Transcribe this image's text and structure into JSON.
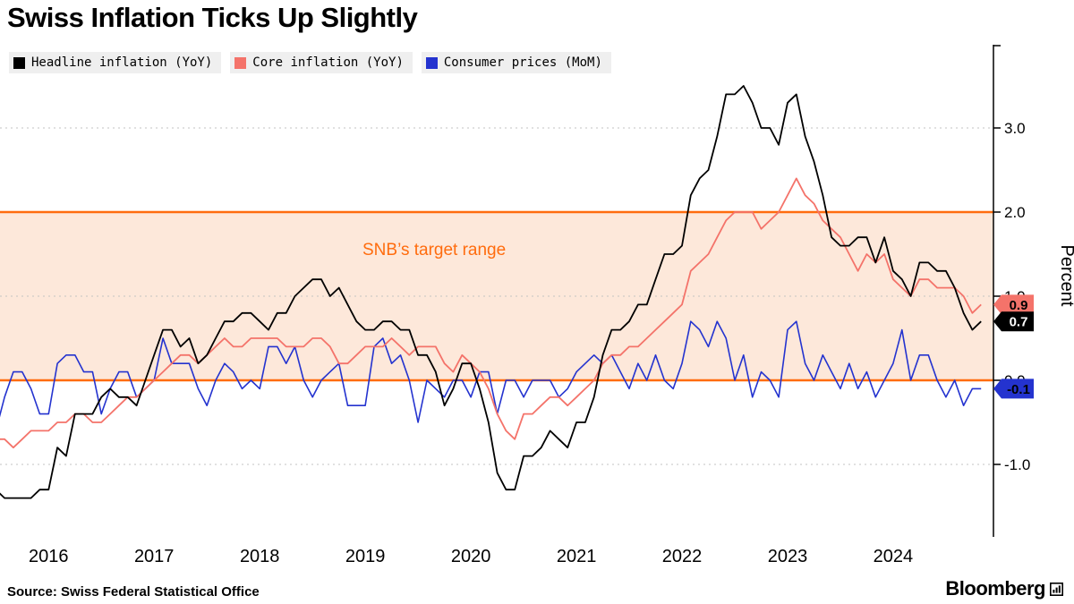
{
  "header": {
    "title": "Swiss Inflation Ticks Up Slightly"
  },
  "legend": [
    {
      "label": "Headline inflation (YoY)",
      "color": "#000000"
    },
    {
      "label": "Core inflation (YoY)",
      "color": "#f4736a"
    },
    {
      "label": "Consumer prices (MoM)",
      "color": "#2433cf"
    }
  ],
  "footer": {
    "source": "Source: Swiss Federal Statistical Office",
    "brand": "Bloomberg"
  },
  "chart_data": {
    "type": "line",
    "title": "Swiss Inflation Ticks Up Slightly",
    "xlabel": "",
    "ylabel": "Percent",
    "ylim": [
      -1.75,
      3.75
    ],
    "grid": "horizontal-dotted",
    "legend_position": "top-left",
    "yticks": [
      {
        "value": 3.0,
        "label": "3.0"
      },
      {
        "value": 2.0,
        "label": "2.0"
      },
      {
        "value": 1.0,
        "label": "1.0"
      },
      {
        "value": 0.0,
        "label": "0.0"
      },
      {
        "value": -1.0,
        "label": "-1.0"
      }
    ],
    "xticks": [
      2016,
      2017,
      2018,
      2019,
      2020,
      2021,
      2022,
      2023,
      2024
    ],
    "start": {
      "year": 2015,
      "month": 7
    },
    "frequency": "monthly",
    "target_band": {
      "label": "SNB’s target range",
      "from": 0.0,
      "to": 2.0,
      "color": "#ff6c0e",
      "fill": "#fde8da"
    },
    "series": [
      {
        "name": "Headline inflation (YoY)",
        "slug": "headline",
        "color": "#000000",
        "width": 1.8,
        "last_label": "0.7",
        "badge_text_color": "#ffffff",
        "values": [
          -1.3,
          -1.4,
          -1.4,
          -1.4,
          -1.4,
          -1.3,
          -1.3,
          -0.8,
          -0.9,
          -0.4,
          -0.4,
          -0.4,
          -0.2,
          -0.1,
          -0.2,
          -0.2,
          -0.3,
          0.0,
          0.3,
          0.6,
          0.6,
          0.4,
          0.5,
          0.2,
          0.3,
          0.5,
          0.7,
          0.7,
          0.8,
          0.8,
          0.7,
          0.6,
          0.8,
          0.8,
          1.0,
          1.1,
          1.2,
          1.2,
          1.0,
          1.1,
          0.9,
          0.7,
          0.6,
          0.6,
          0.7,
          0.7,
          0.6,
          0.6,
          0.3,
          0.3,
          0.1,
          -0.3,
          -0.1,
          0.2,
          0.2,
          -0.1,
          -0.5,
          -1.1,
          -1.3,
          -1.3,
          -0.9,
          -0.9,
          -0.8,
          -0.6,
          -0.7,
          -0.8,
          -0.5,
          -0.5,
          -0.2,
          0.3,
          0.6,
          0.6,
          0.7,
          0.9,
          0.9,
          1.2,
          1.5,
          1.5,
          1.6,
          2.2,
          2.4,
          2.5,
          2.9,
          3.4,
          3.4,
          3.5,
          3.3,
          3.0,
          3.0,
          2.8,
          3.3,
          3.4,
          2.9,
          2.6,
          2.2,
          1.7,
          1.6,
          1.6,
          1.7,
          1.7,
          1.4,
          1.7,
          1.3,
          1.2,
          1.0,
          1.4,
          1.4,
          1.3,
          1.3,
          1.1,
          0.8,
          0.6,
          0.7
        ]
      },
      {
        "name": "Core inflation (YoY)",
        "slug": "core",
        "color": "#f4736a",
        "width": 1.8,
        "last_label": "0.9",
        "badge_text_color": "#000000",
        "values": [
          -0.7,
          -0.7,
          -0.8,
          -0.7,
          -0.6,
          -0.6,
          -0.6,
          -0.5,
          -0.5,
          -0.4,
          -0.4,
          -0.5,
          -0.5,
          -0.4,
          -0.3,
          -0.2,
          -0.2,
          -0.1,
          0.0,
          0.1,
          0.2,
          0.3,
          0.3,
          0.2,
          0.3,
          0.4,
          0.5,
          0.4,
          0.4,
          0.5,
          0.5,
          0.5,
          0.5,
          0.4,
          0.4,
          0.4,
          0.5,
          0.5,
          0.4,
          0.2,
          0.2,
          0.3,
          0.4,
          0.4,
          0.4,
          0.5,
          0.4,
          0.3,
          0.4,
          0.4,
          0.4,
          0.2,
          0.1,
          0.3,
          0.2,
          0.1,
          -0.1,
          -0.4,
          -0.6,
          -0.7,
          -0.4,
          -0.4,
          -0.3,
          -0.2,
          -0.2,
          -0.3,
          -0.2,
          -0.1,
          0.0,
          0.2,
          0.3,
          0.3,
          0.4,
          0.4,
          0.5,
          0.6,
          0.7,
          0.8,
          0.9,
          1.3,
          1.4,
          1.5,
          1.7,
          1.9,
          2.0,
          2.0,
          2.0,
          1.8,
          1.9,
          2.0,
          2.2,
          2.4,
          2.2,
          2.1,
          1.9,
          1.8,
          1.7,
          1.5,
          1.3,
          1.5,
          1.4,
          1.5,
          1.2,
          1.1,
          1.0,
          1.2,
          1.2,
          1.1,
          1.1,
          1.1,
          1.0,
          0.8,
          0.9
        ]
      },
      {
        "name": "Consumer prices (MoM)",
        "slug": "mom",
        "color": "#2433cf",
        "width": 1.6,
        "last_label": "-0.1",
        "badge_text_color": "#000000",
        "values": [
          -0.6,
          -0.2,
          0.1,
          0.1,
          -0.1,
          -0.4,
          -0.4,
          0.2,
          0.3,
          0.3,
          0.1,
          0.1,
          -0.4,
          -0.1,
          0.1,
          0.1,
          -0.2,
          -0.1,
          0.0,
          0.5,
          0.2,
          0.2,
          0.2,
          -0.1,
          -0.3,
          0.0,
          0.2,
          0.1,
          -0.1,
          0.0,
          -0.1,
          0.4,
          0.4,
          0.2,
          0.4,
          0.0,
          -0.2,
          0.0,
          0.1,
          0.2,
          -0.3,
          -0.3,
          -0.3,
          0.4,
          0.5,
          0.2,
          0.3,
          0.0,
          -0.5,
          0.0,
          -0.1,
          -0.2,
          0.0,
          0.0,
          -0.2,
          0.1,
          0.1,
          -0.4,
          0.0,
          0.0,
          -0.2,
          0.0,
          0.0,
          0.0,
          -0.2,
          -0.1,
          0.1,
          0.2,
          0.3,
          0.2,
          0.3,
          0.1,
          -0.1,
          0.2,
          0.0,
          0.3,
          0.0,
          -0.1,
          0.2,
          0.7,
          0.6,
          0.4,
          0.7,
          0.5,
          0.0,
          0.3,
          -0.2,
          0.1,
          0.0,
          -0.2,
          0.6,
          0.7,
          0.2,
          0.0,
          0.3,
          0.1,
          -0.1,
          0.2,
          -0.1,
          0.1,
          -0.2,
          0.0,
          0.2,
          0.6,
          0.0,
          0.3,
          0.3,
          0.0,
          -0.2,
          0.0,
          -0.3,
          -0.1,
          -0.1
        ]
      }
    ]
  }
}
